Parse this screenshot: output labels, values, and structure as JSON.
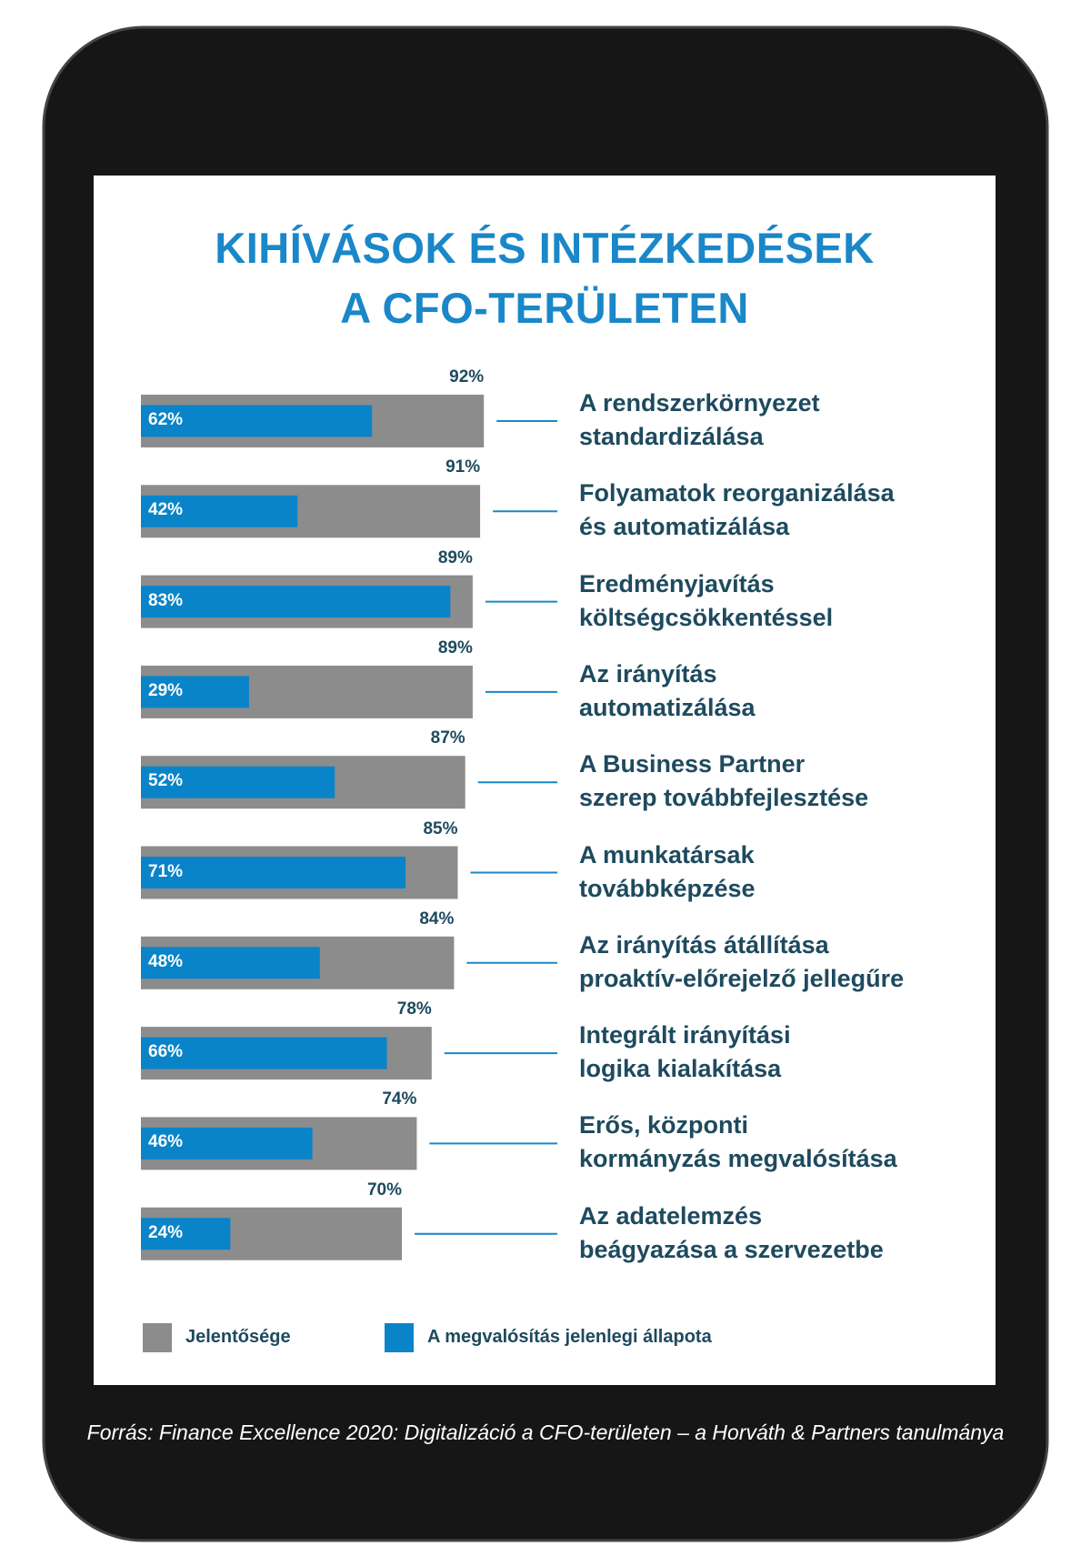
{
  "chart_data": {
    "type": "bar",
    "title": "KIHÍVÁSOK ÉS INTÉZKEDÉSEK\nA CFO-TERÜLETEN",
    "categories": [
      "A rendszerkörnyezet\nstandardizálása",
      "Folyamatok reorganizálása\nés automatizálása",
      "Eredményjavítás\nköltségcsökkentéssel",
      "Az irányítás\nautomatizálása",
      "A Business Partner\nszerep továbbfejlesztése",
      "A munkatársak\ntovábbképzése",
      "Az irányítás átállítása\nproaktív-előrejelző jellegűre",
      "Integrált irányítási\nlogika kialakítása",
      "Erős, központi\nkormányzás megvalósítása",
      "Az adatelemzés\nbeágyazása a szervezetbe"
    ],
    "series": [
      {
        "name": "Jelentősége",
        "color": "#8c8c8c",
        "values": [
          92,
          91,
          89,
          89,
          87,
          85,
          84,
          78,
          74,
          70
        ],
        "value_labels": [
          "92%",
          "91%",
          "89%",
          "89%",
          "87%",
          "85%",
          "84%",
          "78%",
          "74%",
          "70%"
        ]
      },
      {
        "name": "A megvalósítás jelenlegi állapota",
        "color": "#0a84c9",
        "values": [
          62,
          42,
          83,
          29,
          52,
          71,
          48,
          66,
          46,
          24
        ],
        "value_labels": [
          "62%",
          "42%",
          "83%",
          "29%",
          "52%",
          "71%",
          "48%",
          "66%",
          "46%",
          "24%"
        ]
      }
    ],
    "xlim": [
      0,
      100
    ],
    "source": "Forrás: Finance Excellence 2020: Digitalizáció a CFO-területen – a Horváth & Partners tanulmánya"
  }
}
